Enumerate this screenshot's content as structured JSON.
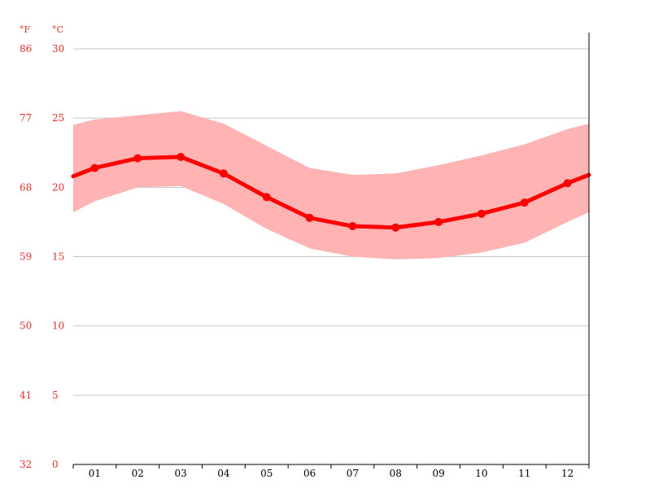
{
  "chart_data": {
    "type": "line",
    "title": "",
    "xlabel": "",
    "ylabel": "",
    "units": {
      "fahrenheit": "°F",
      "celsius": "°C"
    },
    "categories": [
      "01",
      "02",
      "03",
      "04",
      "05",
      "06",
      "07",
      "08",
      "09",
      "10",
      "11",
      "12"
    ],
    "y_ticks_celsius": [
      "30",
      "25",
      "20",
      "15",
      "10",
      "5",
      "0"
    ],
    "y_ticks_fahrenheit": [
      "86",
      "77",
      "68",
      "59",
      "50",
      "41",
      "32"
    ],
    "ylim_celsius": [
      0,
      30
    ],
    "grid": true,
    "legend": "none",
    "series": [
      {
        "name": "",
        "role": "mean",
        "color": "#ff0000",
        "values": [
          21.4,
          22.1,
          22.2,
          21.0,
          19.3,
          17.8,
          17.2,
          17.1,
          17.5,
          18.1,
          18.9,
          20.3
        ]
      }
    ],
    "band": {
      "color": "#ffb3b3",
      "upper": [
        24.9,
        25.2,
        25.5,
        24.6,
        23.0,
        21.4,
        20.9,
        21.0,
        21.6,
        22.3,
        23.1,
        24.2
      ],
      "lower": [
        19.0,
        20.0,
        20.1,
        18.8,
        17.0,
        15.6,
        15.0,
        14.8,
        14.9,
        15.3,
        16.0,
        17.5
      ],
      "edge_upper": [
        24.5,
        24.6
      ],
      "edge_lower": [
        18.2,
        18.2
      ]
    },
    "line_edge_values": [
      20.8,
      20.9
    ]
  }
}
